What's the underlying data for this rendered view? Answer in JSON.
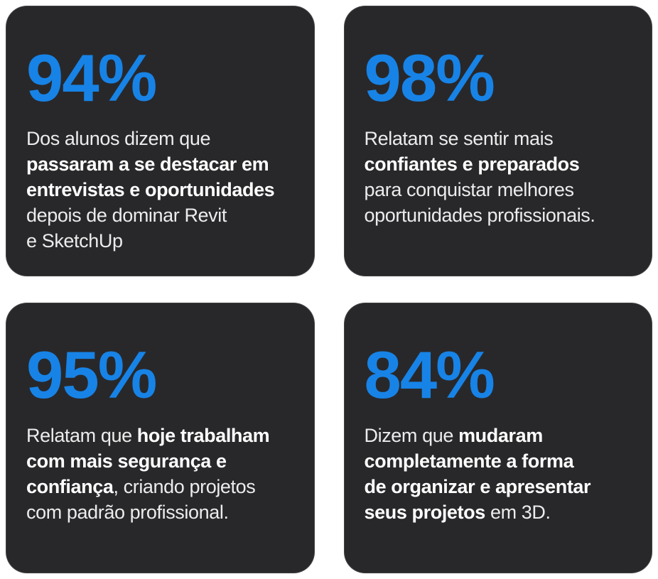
{
  "theme": {
    "page_background": "#ffffff",
    "card_background": "#28282b",
    "accent_blue": "#1783e6",
    "text_regular": "#ececec",
    "text_bold": "#ffffff"
  },
  "cards": [
    {
      "stat": "94%",
      "lines": [
        [
          {
            "text": "Dos alunos dizem que",
            "bold": false
          }
        ],
        [
          {
            "text": "passaram a se destacar em",
            "bold": true
          }
        ],
        [
          {
            "text": "entrevistas e oportunidades",
            "bold": true
          }
        ],
        [
          {
            "text": "depois de dominar Revit",
            "bold": false
          }
        ],
        [
          {
            "text": "e SketchUp",
            "bold": false
          }
        ]
      ]
    },
    {
      "stat": "98%",
      "lines": [
        [
          {
            "text": "Relatam se sentir mais",
            "bold": false
          }
        ],
        [
          {
            "text": "confiantes e preparados",
            "bold": true
          }
        ],
        [
          {
            "text": "para conquistar melhores",
            "bold": false
          }
        ],
        [
          {
            "text": "oportunidades profissionais.",
            "bold": false
          }
        ]
      ]
    },
    {
      "stat": "95%",
      "lines": [
        [
          {
            "text": "Relatam que ",
            "bold": false
          },
          {
            "text": "hoje trabalham",
            "bold": true
          }
        ],
        [
          {
            "text": "com mais segurança e",
            "bold": true
          }
        ],
        [
          {
            "text": "confiança",
            "bold": true
          },
          {
            "text": ", criando projetos",
            "bold": false
          }
        ],
        [
          {
            "text": "com padrão profissional.",
            "bold": false
          }
        ]
      ]
    },
    {
      "stat": "84%",
      "lines": [
        [
          {
            "text": "Dizem que ",
            "bold": false
          },
          {
            "text": "mudaram",
            "bold": true
          }
        ],
        [
          {
            "text": "completamente a forma",
            "bold": true
          }
        ],
        [
          {
            "text": "de organizar e apresentar",
            "bold": true
          }
        ],
        [
          {
            "text": "seus projetos",
            "bold": true
          },
          {
            "text": " em 3D.",
            "bold": false
          }
        ]
      ]
    }
  ]
}
